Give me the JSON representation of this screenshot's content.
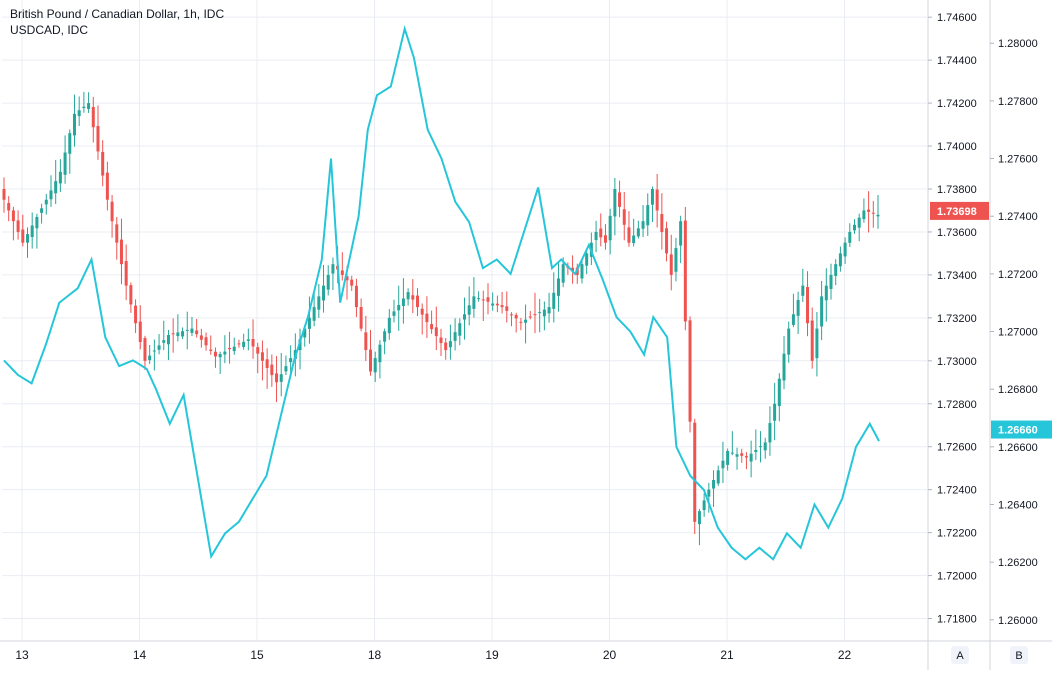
{
  "chart_data": {
    "type": "candlestick+line",
    "title": "British Pound / Canadian Dollar, 1h, IDC",
    "subtitle": "USDCAD, IDC",
    "x_labels": [
      "13",
      "14",
      "15",
      "18",
      "19",
      "20",
      "21",
      "22"
    ],
    "axis_a": {
      "label": "A",
      "ticks": [
        "1.74600",
        "1.74400",
        "1.74200",
        "1.74000",
        "1.73800",
        "1.73600",
        "1.73400",
        "1.73200",
        "1.73000",
        "1.72800",
        "1.72600",
        "1.72400",
        "1.72200",
        "1.72000",
        "1.71800"
      ],
      "range": [
        1.717,
        1.7468
      ],
      "last_value": "1.73698",
      "last_color": "#ef5350"
    },
    "axis_b": {
      "label": "B",
      "ticks": [
        "1.28000",
        "1.27800",
        "1.27600",
        "1.27400",
        "1.27200",
        "1.27000",
        "1.26800",
        "1.26600",
        "1.26400",
        "1.26200",
        "1.26000"
      ],
      "range": [
        1.2593,
        1.2815
      ],
      "last_value": "1.26660",
      "last_color": "#26c6da"
    },
    "colors": {
      "up": "#26a69a",
      "down": "#ef5350",
      "line": "#26c6da",
      "grid": "#e9edf3"
    },
    "series": [
      {
        "type": "candlestick",
        "anchors": [
          [
            0,
            1.7375
          ],
          [
            4,
            1.7355
          ],
          [
            9,
            1.7375
          ],
          [
            12,
            1.7388
          ],
          [
            15,
            1.7415
          ],
          [
            18,
            1.742
          ],
          [
            22,
            1.7375
          ],
          [
            26,
            1.7335
          ],
          [
            30,
            1.73
          ],
          [
            35,
            1.7312
          ],
          [
            40,
            1.7315
          ],
          [
            45,
            1.7302
          ],
          [
            52,
            1.731
          ],
          [
            58,
            1.729
          ],
          [
            62,
            1.7305
          ],
          [
            66,
            1.7325
          ],
          [
            70,
            1.7345
          ],
          [
            74,
            1.7335
          ],
          [
            78,
            1.7295
          ],
          [
            82,
            1.732
          ],
          [
            86,
            1.7332
          ],
          [
            90,
            1.7318
          ],
          [
            94,
            1.7305
          ],
          [
            100,
            1.733
          ],
          [
            106,
            1.7325
          ],
          [
            110,
            1.7318
          ],
          [
            116,
            1.7325
          ],
          [
            119,
            1.7345
          ],
          [
            122,
            1.734
          ],
          [
            126,
            1.736
          ],
          [
            128,
            1.7355
          ],
          [
            130,
            1.738
          ],
          [
            133,
            1.7355
          ],
          [
            136,
            1.7365
          ],
          [
            138,
            1.738
          ],
          [
            142,
            1.734
          ],
          [
            144,
            1.7365
          ],
          [
            147,
            1.7225
          ],
          [
            150,
            1.724
          ],
          [
            154,
            1.7258
          ],
          [
            158,
            1.7255
          ],
          [
            162,
            1.7262
          ],
          [
            164,
            1.728
          ],
          [
            167,
            1.7315
          ],
          [
            170,
            1.7335
          ],
          [
            172,
            1.73
          ],
          [
            174,
            1.733
          ],
          [
            177,
            1.7345
          ],
          [
            180,
            1.736
          ],
          [
            183,
            1.737
          ],
          [
            186,
            1.7368
          ]
        ],
        "count": 187
      },
      {
        "type": "line",
        "name": "USDCAD, IDC",
        "anchors": [
          [
            0,
            1.269
          ],
          [
            3,
            1.2685
          ],
          [
            6,
            1.2682
          ],
          [
            9,
            1.2695
          ],
          [
            12,
            1.271
          ],
          [
            16,
            1.2715
          ],
          [
            19,
            1.2725
          ],
          [
            22,
            1.2698
          ],
          [
            25,
            1.2688
          ],
          [
            28,
            1.269
          ],
          [
            31,
            1.2687
          ],
          [
            33,
            1.268
          ],
          [
            36,
            1.2668
          ],
          [
            39,
            1.2678
          ],
          [
            42,
            1.265
          ],
          [
            45,
            1.2622
          ],
          [
            48,
            1.263
          ],
          [
            51,
            1.2634
          ],
          [
            54,
            1.2642
          ],
          [
            57,
            1.265
          ],
          [
            60,
            1.267
          ],
          [
            63,
            1.269
          ],
          [
            66,
            1.2705
          ],
          [
            69,
            1.2725
          ],
          [
            71,
            1.276
          ],
          [
            73,
            1.271
          ],
          [
            75,
            1.2725
          ],
          [
            77,
            1.274
          ],
          [
            79,
            1.277
          ],
          [
            81,
            1.2782
          ],
          [
            84,
            1.2785
          ],
          [
            87,
            1.2805
          ],
          [
            89,
            1.2795
          ],
          [
            92,
            1.277
          ],
          [
            95,
            1.276
          ],
          [
            98,
            1.2745
          ],
          [
            101,
            1.2738
          ],
          [
            104,
            1.2722
          ],
          [
            107,
            1.2725
          ],
          [
            110,
            1.272
          ],
          [
            113,
            1.2735
          ],
          [
            116,
            1.275
          ],
          [
            119,
            1.2722
          ],
          [
            121,
            1.2725
          ],
          [
            124,
            1.272
          ],
          [
            127,
            1.273
          ],
          [
            130,
            1.2718
          ],
          [
            133,
            1.2705
          ],
          [
            136,
            1.27
          ],
          [
            139,
            1.2692
          ],
          [
            141,
            1.2705
          ],
          [
            144,
            1.2698
          ],
          [
            146,
            1.266
          ],
          [
            149,
            1.265
          ],
          [
            152,
            1.2645
          ],
          [
            155,
            1.2632
          ],
          [
            158,
            1.2625
          ],
          [
            161,
            1.2621
          ],
          [
            164,
            1.2625
          ],
          [
            167,
            1.2621
          ],
          [
            170,
            1.263
          ],
          [
            173,
            1.2625
          ],
          [
            176,
            1.264
          ],
          [
            179,
            1.2632
          ],
          [
            182,
            1.2642
          ],
          [
            185,
            1.266
          ],
          [
            188,
            1.2668
          ],
          [
            190,
            1.2662
          ]
        ]
      }
    ]
  }
}
